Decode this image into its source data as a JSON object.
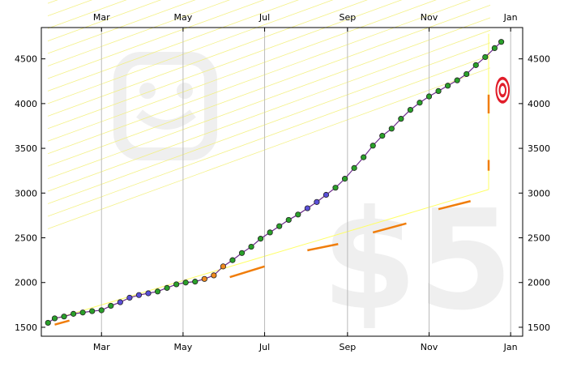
{
  "chart_data": {
    "type": "scatter",
    "title": "",
    "xlabel": "",
    "ylabel": "",
    "x_range": [
      "2009-01-15",
      "2010-01-10"
    ],
    "ylim": [
      1400,
      4850
    ],
    "x_tick_labels": [
      "Mar",
      "May",
      "Jul",
      "Sep",
      "Nov",
      "Jan"
    ],
    "x_tick_dates": [
      "2009-03-01",
      "2009-05-01",
      "2009-07-01",
      "2009-09-01",
      "2009-11-01",
      "2010-01-01"
    ],
    "y_ticks": [
      1500,
      2000,
      2500,
      3000,
      3500,
      4000,
      4500
    ],
    "y_tick_labels": [
      "1500",
      "2000",
      "2500",
      "3000",
      "3500",
      "4000",
      "4500"
    ],
    "grid": "vertical lines at month ticks",
    "axes_labels_on": "both sides (top/bottom, left/right)",
    "watermark_text": "$5",
    "target_marker": {
      "date": "2009-12-26",
      "value": 4150
    },
    "series": [
      {
        "role": "weight data points",
        "x": [
          "2009-01-20",
          "2009-01-25",
          "2009-02-01",
          "2009-02-08",
          "2009-02-15",
          "2009-02-22",
          "2009-03-01",
          "2009-03-08",
          "2009-03-15",
          "2009-03-22",
          "2009-03-29",
          "2009-04-05",
          "2009-04-12",
          "2009-04-19",
          "2009-04-26",
          "2009-05-03",
          "2009-05-10",
          "2009-05-17",
          "2009-05-24",
          "2009-05-31",
          "2009-06-07",
          "2009-06-14",
          "2009-06-21",
          "2009-06-28",
          "2009-07-05",
          "2009-07-12",
          "2009-07-19",
          "2009-07-26",
          "2009-08-02",
          "2009-08-09",
          "2009-08-16",
          "2009-08-23",
          "2009-08-30",
          "2009-09-06",
          "2009-09-13",
          "2009-09-20",
          "2009-09-27",
          "2009-10-04",
          "2009-10-11",
          "2009-10-18",
          "2009-10-25",
          "2009-11-01",
          "2009-11-08",
          "2009-11-15",
          "2009-11-22",
          "2009-11-29",
          "2009-12-06",
          "2009-12-13",
          "2009-12-20",
          "2009-12-25"
        ],
        "y": [
          1550,
          1600,
          1620,
          1650,
          1665,
          1680,
          1690,
          1740,
          1780,
          1830,
          1860,
          1880,
          1900,
          1940,
          1980,
          2000,
          2010,
          2040,
          2080,
          2180,
          2250,
          2330,
          2400,
          2490,
          2560,
          2630,
          2700,
          2760,
          2830,
          2900,
          2980,
          3060,
          3160,
          3280,
          3400,
          3530,
          3640,
          3720,
          3830,
          3930,
          4010,
          4080,
          4140,
          4200,
          4260,
          4330,
          4430,
          4520,
          4620,
          4690
        ]
      },
      {
        "role": "orange dashed guide",
        "x": [
          "2009-01-25",
          "2009-02-05",
          "2009-06-05",
          "2009-07-01",
          "2009-08-02",
          "2009-08-25",
          "2009-09-20",
          "2009-10-15",
          "2009-11-08",
          "2009-12-02"
        ],
        "y": [
          1530,
          1575,
          2060,
          2180,
          2360,
          2430,
          2560,
          2660,
          2820,
          2910
        ]
      }
    ]
  }
}
